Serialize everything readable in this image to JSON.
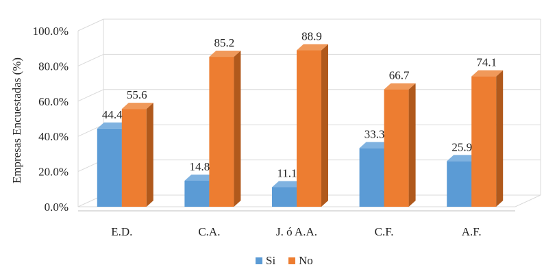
{
  "chart_data": {
    "type": "bar",
    "title": "",
    "xlabel": "",
    "ylabel": "Empresas Encuestadas (%)",
    "ylim": [
      0,
      100
    ],
    "yticks": [
      "0.0%",
      "20.0%",
      "40.0%",
      "60.0%",
      "80.0%",
      "100.0%"
    ],
    "categories": [
      "E.D.",
      "C.A.",
      "J. ó A.A.",
      "C.F.",
      "A.F."
    ],
    "series": [
      {
        "name": "Si",
        "values": [
          44.4,
          14.8,
          11.1,
          33.3,
          25.9
        ],
        "labels": [
          "44.4",
          "14.8",
          "11.1",
          "33.3",
          "25.9"
        ],
        "color": "#5B9BD5",
        "side_color": "#41719C",
        "top_color": "#7FB2E0"
      },
      {
        "name": "No",
        "values": [
          55.6,
          85.2,
          88.9,
          66.7,
          74.1
        ],
        "labels": [
          "55.6",
          "85.2",
          "88.9",
          "66.7",
          "74.1"
        ],
        "color": "#ED7D31",
        "side_color": "#B0591C",
        "top_color": "#F0995A"
      }
    ],
    "legend": "bottom-center",
    "grid": true
  }
}
